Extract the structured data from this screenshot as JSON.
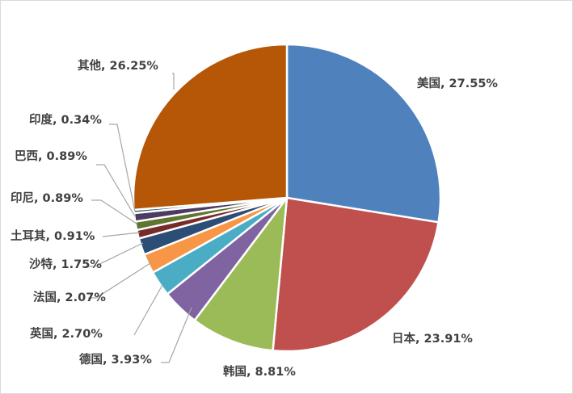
{
  "chart_data": {
    "type": "pie",
    "title": "",
    "legend": "none",
    "slices": [
      {
        "label": "美国",
        "value": 27.55,
        "text": "美国, 27.55%",
        "color": "#4f81bd"
      },
      {
        "label": "日本",
        "value": 23.91,
        "text": "日本, 23.91%",
        "color": "#c0504d"
      },
      {
        "label": "韩国",
        "value": 8.81,
        "text": "韩国, 8.81%",
        "color": "#9bbb59"
      },
      {
        "label": "德国",
        "value": 3.93,
        "text": "德国, 3.93%",
        "color": "#8064a2"
      },
      {
        "label": "英国",
        "value": 2.7,
        "text": "英国, 2.70%",
        "color": "#4bacc6"
      },
      {
        "label": "法国",
        "value": 2.07,
        "text": "法国, 2.07%",
        "color": "#f79646"
      },
      {
        "label": "沙特",
        "value": 1.75,
        "text": "沙特, 1.75%",
        "color": "#2c4d75"
      },
      {
        "label": "土耳其",
        "value": 0.91,
        "text": "土耳其, 0.91%",
        "color": "#772c2a"
      },
      {
        "label": "印尼",
        "value": 0.89,
        "text": "印尼, 0.89%",
        "color": "#5f7530"
      },
      {
        "label": "巴西",
        "value": 0.89,
        "text": "巴西, 0.89%",
        "color": "#4d3b62"
      },
      {
        "label": "印度",
        "value": 0.34,
        "text": "印度, 0.34%",
        "color": "#276a7c"
      },
      {
        "label": "其他",
        "value": 26.25,
        "text": "其他, 26.25%",
        "color": "#b65708"
      }
    ]
  }
}
